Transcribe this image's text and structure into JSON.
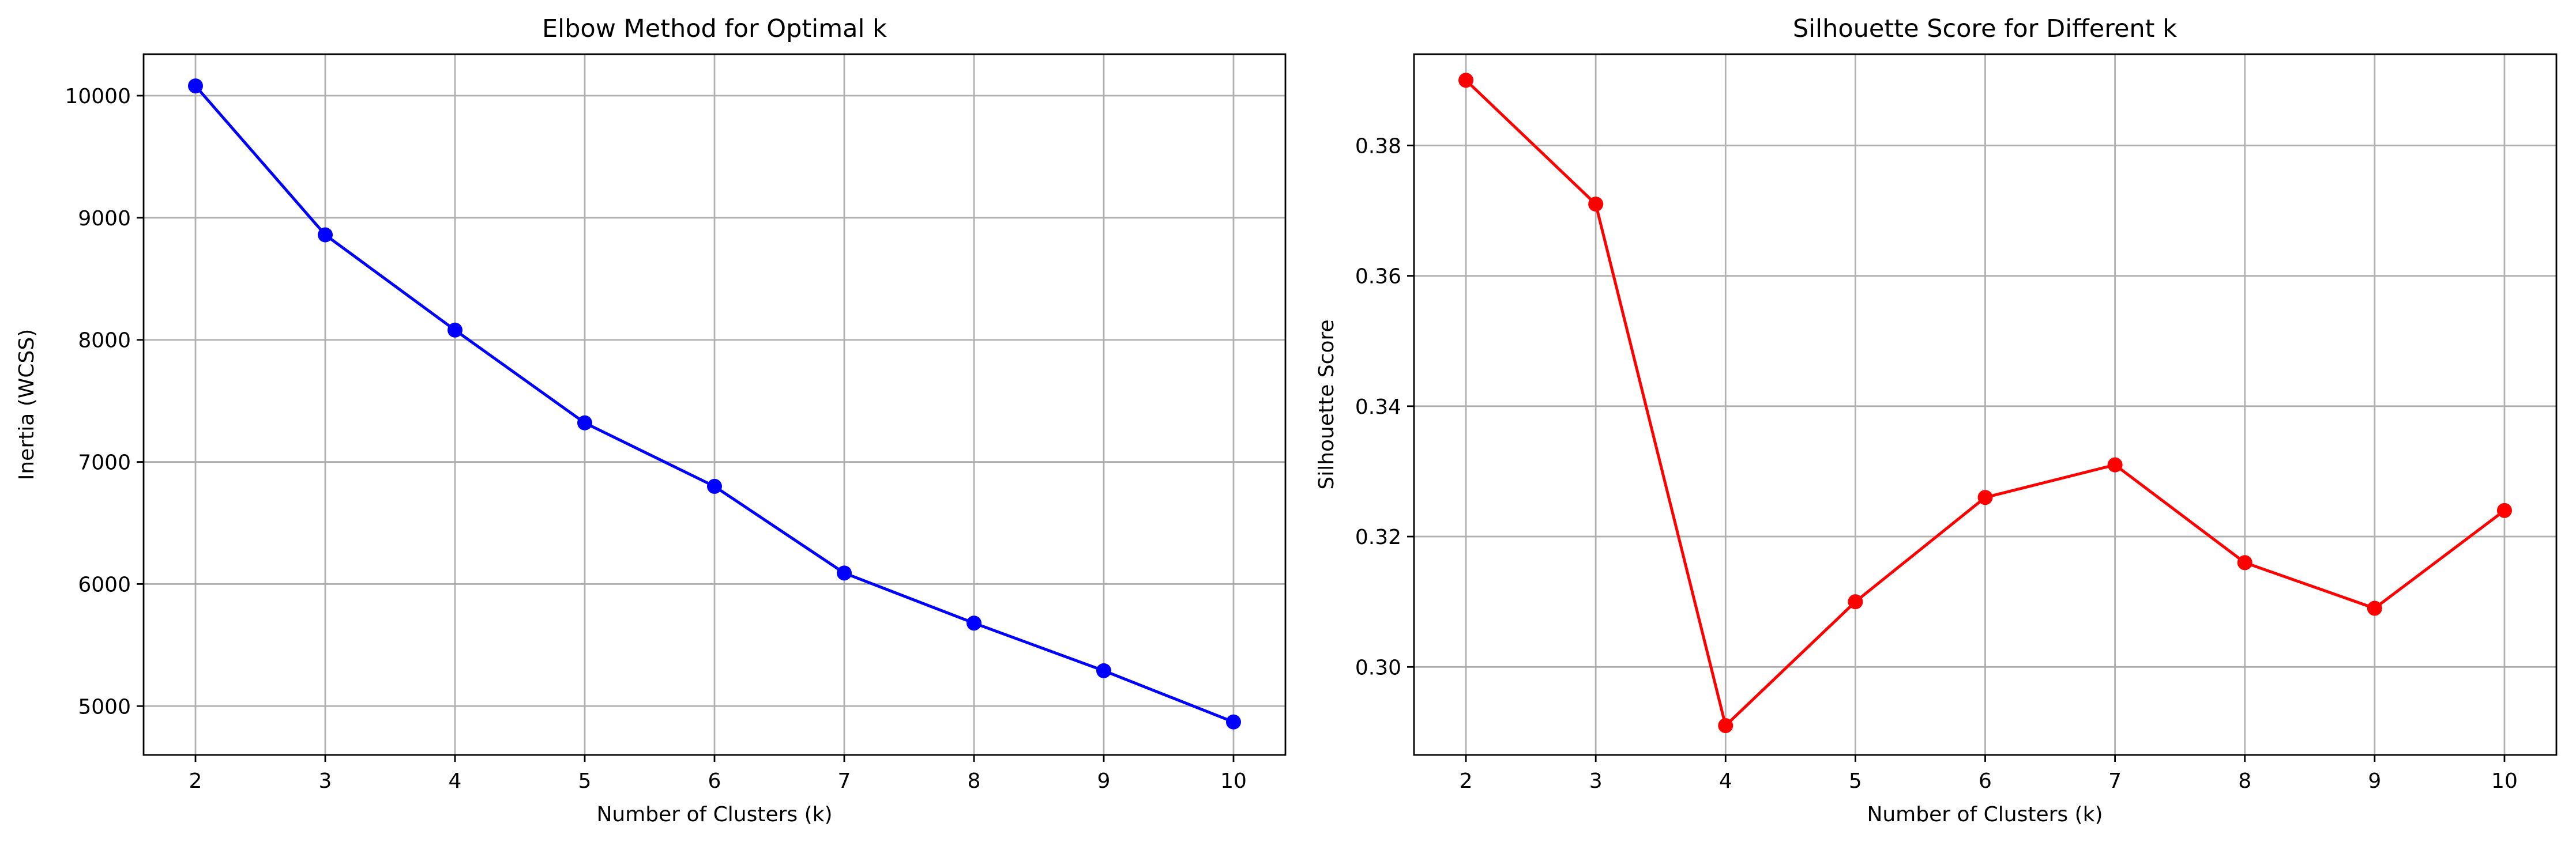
{
  "chart_data": [
    {
      "type": "line",
      "title": "Elbow Method for Optimal k",
      "xlabel": "Number of Clusters (k)",
      "ylabel": "Inertia (WCSS)",
      "x": [
        2,
        3,
        4,
        5,
        6,
        7,
        8,
        9,
        10
      ],
      "series": [
        {
          "values": [
            10080,
            8860,
            8080,
            7320,
            6800,
            6090,
            5680,
            5290,
            4870
          ],
          "color": "#0000ff",
          "marker": "circle"
        }
      ],
      "xticks": [
        2,
        3,
        4,
        5,
        6,
        7,
        8,
        9,
        10
      ],
      "yticks": [
        5000,
        6000,
        7000,
        8000,
        9000,
        10000
      ],
      "ytick_labels": [
        "5000",
        "6000",
        "7000",
        "8000",
        "9000",
        "10000"
      ],
      "xlim": [
        1.6,
        10.4
      ],
      "ylim": [
        4600,
        10340
      ],
      "grid": true,
      "legend": false
    },
    {
      "type": "line",
      "title": "Silhouette Score for Different k",
      "xlabel": "Number of Clusters (k)",
      "ylabel": "Silhouette Score",
      "x": [
        2,
        3,
        4,
        5,
        6,
        7,
        8,
        9,
        10
      ],
      "series": [
        {
          "values": [
            0.39,
            0.371,
            0.291,
            0.31,
            0.326,
            0.331,
            0.316,
            0.309,
            0.324
          ],
          "color": "#ff0000",
          "marker": "circle"
        }
      ],
      "xticks": [
        2,
        3,
        4,
        5,
        6,
        7,
        8,
        9,
        10
      ],
      "yticks": [
        0.3,
        0.32,
        0.34,
        0.36,
        0.38
      ],
      "ytick_labels": [
        "0.30",
        "0.32",
        "0.34",
        "0.36",
        "0.38"
      ],
      "xlim": [
        1.6,
        10.4
      ],
      "ylim": [
        0.2865,
        0.394
      ],
      "grid": true,
      "legend": false
    }
  ]
}
